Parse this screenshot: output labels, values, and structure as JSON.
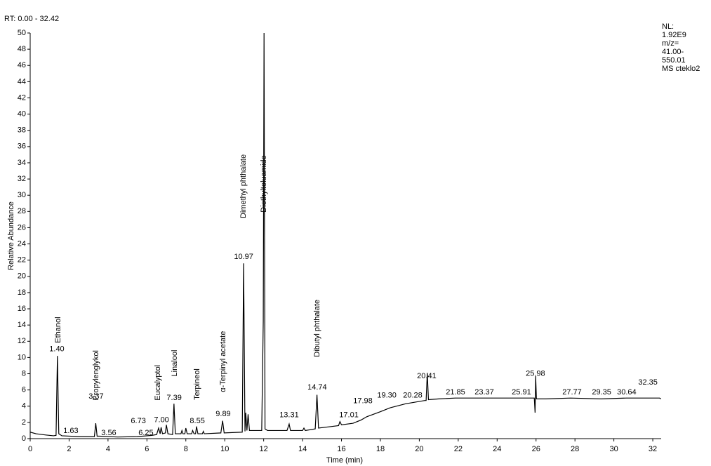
{
  "chart_data": {
    "type": "line",
    "rt_range": "RT: 0.00 - 32.42",
    "info": [
      "NL:",
      "1.92E9",
      "m/z=",
      "41.00-",
      "550.01",
      "MS cteklo2"
    ],
    "y_label": "Relative Abundance",
    "x_label": "Time (min)",
    "color": "#000000",
    "xlim": [
      0,
      32.42
    ],
    "xticks": [
      0,
      2,
      4,
      6,
      8,
      10,
      12,
      14,
      16,
      18,
      20,
      22,
      24,
      26,
      28,
      30,
      32
    ],
    "ylim": [
      0,
      50
    ],
    "yticks": [
      0,
      2,
      4,
      6,
      8,
      10,
      12,
      14,
      16,
      18,
      20,
      22,
      24,
      26,
      28,
      30,
      32,
      34,
      36,
      38,
      40,
      42,
      44,
      46,
      48,
      50
    ],
    "x": [
      0,
      0.3,
      0.8,
      1.2,
      1.33,
      1.4,
      1.47,
      1.63,
      2.5,
      3.3,
      3.37,
      3.44,
      3.56,
      4.5,
      5.5,
      6.25,
      6.5,
      6.6,
      6.68,
      6.73,
      6.8,
      6.95,
      7.0,
      7.08,
      7.32,
      7.39,
      7.46,
      7.75,
      7.8,
      7.85,
      7.95,
      8.0,
      8.07,
      8.3,
      8.35,
      8.42,
      8.5,
      8.55,
      8.62,
      8.85,
      8.9,
      8.95,
      9.8,
      9.89,
      9.97,
      10.9,
      10.97,
      11.04,
      11.08,
      11.14,
      11.2,
      11.27,
      11.9,
      11.98,
      12.02,
      12.07,
      12.2,
      13.2,
      13.31,
      13.38,
      14.0,
      14.07,
      14.14,
      14.65,
      14.74,
      14.82,
      15.5,
      15.85,
      15.92,
      16.0,
      16.6,
      17.01,
      17.3,
      17.98,
      18.5,
      19.3,
      20.28,
      20.35,
      20.41,
      20.47,
      21.0,
      21.85,
      23.37,
      24.5,
      25.91,
      25.95,
      25.98,
      26.02,
      26.5,
      27.77,
      29.35,
      30.64,
      31.5,
      32.35,
      32.42
    ],
    "values": [
      0.8,
      0.6,
      0.45,
      0.35,
      0.4,
      10.2,
      0.6,
      0.35,
      0.25,
      0.25,
      1.9,
      0.3,
      0.3,
      0.2,
      0.25,
      0.4,
      0.5,
      1.3,
      0.6,
      1.4,
      0.6,
      0.7,
      1.7,
      0.6,
      0.5,
      4.3,
      0.6,
      0.6,
      1.0,
      0.6,
      0.6,
      1.3,
      0.6,
      0.6,
      1.0,
      0.6,
      0.6,
      1.5,
      0.6,
      0.6,
      0.9,
      0.6,
      0.7,
      2.2,
      0.7,
      0.8,
      21.6,
      0.9,
      3.2,
      1.0,
      3.0,
      1.0,
      1.0,
      14.5,
      50,
      1.2,
      1.0,
      1.0,
      1.8,
      1.0,
      1.0,
      1.3,
      1.0,
      1.2,
      5.4,
      1.3,
      1.5,
      1.6,
      2.1,
      1.7,
      1.9,
      2.3,
      2.7,
      3.3,
      3.8,
      4.3,
      4.7,
      4.7,
      8.1,
      4.8,
      4.9,
      5.0,
      5.0,
      5.0,
      5.0,
      3.2,
      7.7,
      4.9,
      4.9,
      5.0,
      4.9,
      5.0,
      5.0,
      5.0,
      4.9
    ],
    "annotations": [
      {
        "label": "1.40",
        "x": 1.37,
        "y": 11.0
      },
      {
        "label": "1.63",
        "x": 2.09,
        "y": 0.95
      },
      {
        "label": "3.37",
        "x": 3.39,
        "y": 5.2
      },
      {
        "label": "3.56",
        "x": 4.04,
        "y": 0.7
      },
      {
        "label": "6.73",
        "x": 5.56,
        "y": 2.16
      },
      {
        "label": "6.25",
        "x": 5.95,
        "y": 0.7
      },
      {
        "label": "7.00",
        "x": 6.75,
        "y": 2.3
      },
      {
        "label": "7.39",
        "x": 7.4,
        "y": 5.0
      },
      {
        "label": "8.55",
        "x": 8.59,
        "y": 2.16
      },
      {
        "label": "9.89",
        "x": 9.92,
        "y": 3.0
      },
      {
        "label": "10.97",
        "x": 10.97,
        "y": 22.4
      },
      {
        "label": "13.31",
        "x": 13.31,
        "y": 2.9
      },
      {
        "label": "14.74",
        "x": 14.75,
        "y": 6.3
      },
      {
        "label": "17.01",
        "x": 16.38,
        "y": 2.9
      },
      {
        "label": "17.98",
        "x": 17.1,
        "y": 4.6
      },
      {
        "label": "19.30",
        "x": 18.33,
        "y": 5.3
      },
      {
        "label": "20.28",
        "x": 19.66,
        "y": 5.3
      },
      {
        "label": "20.41",
        "x": 20.38,
        "y": 7.7
      },
      {
        "label": "21.85",
        "x": 21.86,
        "y": 5.7
      },
      {
        "label": "23.37",
        "x": 23.34,
        "y": 5.7
      },
      {
        "label": "25.91",
        "x": 25.25,
        "y": 5.7
      },
      {
        "label": "25.98",
        "x": 25.97,
        "y": 8.0
      },
      {
        "label": "27.77",
        "x": 27.85,
        "y": 5.7
      },
      {
        "label": "29.35",
        "x": 29.37,
        "y": 5.7
      },
      {
        "label": "30.64",
        "x": 30.66,
        "y": 5.7
      },
      {
        "label": "32.35",
        "x": 31.75,
        "y": 6.9
      }
    ],
    "compounds": [
      {
        "label": "Ethanol",
        "x": 1.44,
        "y": 13.4
      },
      {
        "label": "Propylenglykol",
        "x": 3.39,
        "y": 7.8
      },
      {
        "label": "Eucalyptol",
        "x": 6.57,
        "y": 6.9
      },
      {
        "label": "Linalool",
        "x": 7.43,
        "y": 9.3
      },
      {
        "label": "Terpineol",
        "x": 8.59,
        "y": 6.7
      },
      {
        "label": "α-Terpinyl acetate",
        "x": 9.92,
        "y": 9.5
      },
      {
        "label": "Dimethyl phthalate",
        "x": 10.97,
        "y": 31.1
      },
      {
        "label": "Diethyltoluamide",
        "x": 12.01,
        "y": 31.4
      },
      {
        "label": "Dibutyl phthalate",
        "x": 14.75,
        "y": 13.6
      }
    ]
  }
}
